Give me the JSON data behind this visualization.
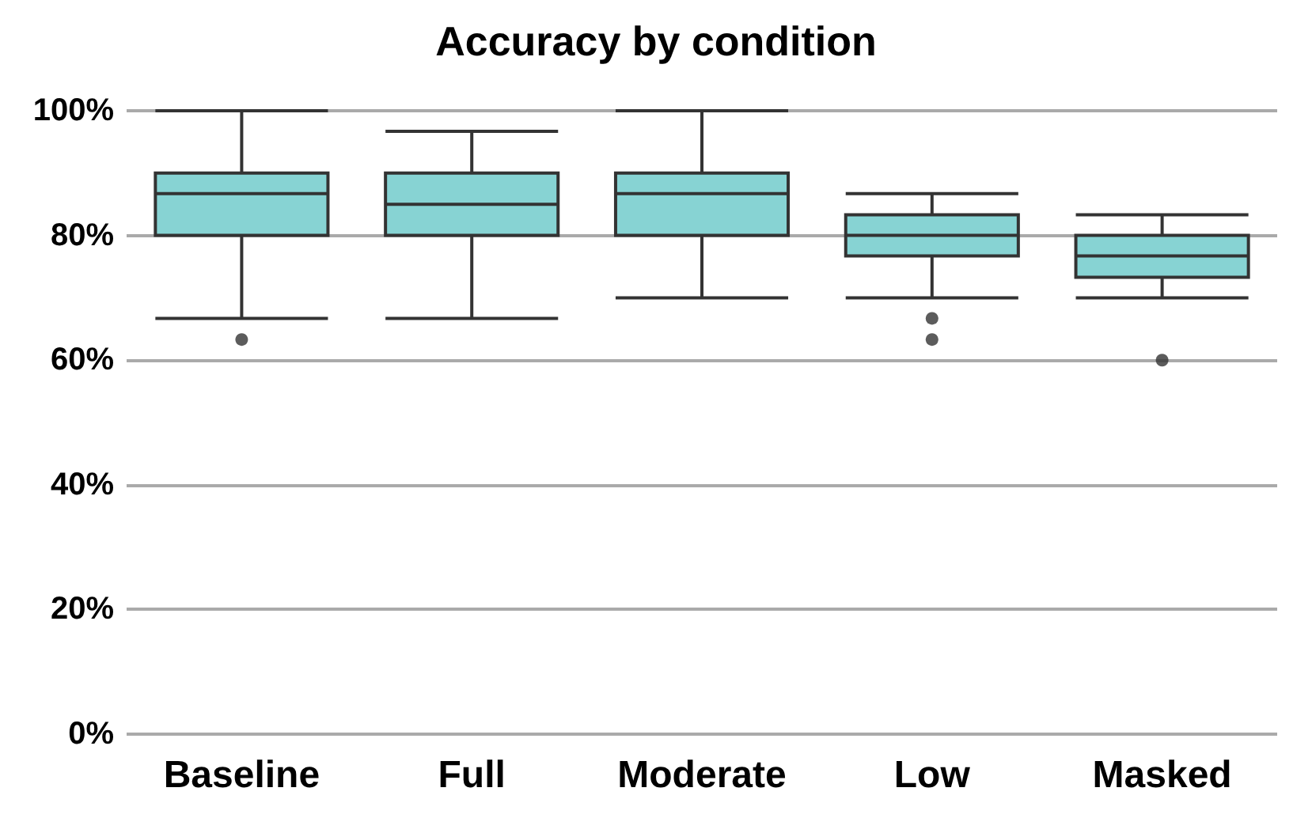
{
  "chart_data": {
    "type": "box",
    "title": "Accuracy by condition",
    "categories": [
      "Baseline",
      "Full",
      "Moderate",
      "Low",
      "Masked"
    ],
    "color": "#87d3d3",
    "boxes": [
      {
        "low": 66.7,
        "q1": 80,
        "median": 86.7,
        "q3": 90,
        "high": 100,
        "outliers": [
          63.3
        ]
      },
      {
        "low": 66.7,
        "q1": 80,
        "median": 85,
        "q3": 90,
        "high": 96.7
      },
      {
        "low": 70,
        "q1": 80,
        "median": 86.7,
        "q3": 90,
        "high": 100
      },
      {
        "low": 70,
        "q1": 76.7,
        "median": 80,
        "q3": 83.3,
        "high": 86.7,
        "outliers": [
          66.7,
          63.3
        ]
      },
      {
        "low": 70,
        "q1": 73.3,
        "median": 76.7,
        "q3": 80,
        "high": 83.3,
        "outliers": [
          60
        ]
      }
    ],
    "ylim": [
      0,
      100
    ],
    "yticks": [
      {
        "value": 0,
        "label": "0%"
      },
      {
        "value": 20,
        "label": "20%"
      },
      {
        "value": 40,
        "label": "40%"
      },
      {
        "value": 60,
        "label": "60%"
      },
      {
        "value": 80,
        "label": "80%"
      },
      {
        "value": 100,
        "label": "100%"
      }
    ],
    "grid": "y",
    "legend": false
  }
}
